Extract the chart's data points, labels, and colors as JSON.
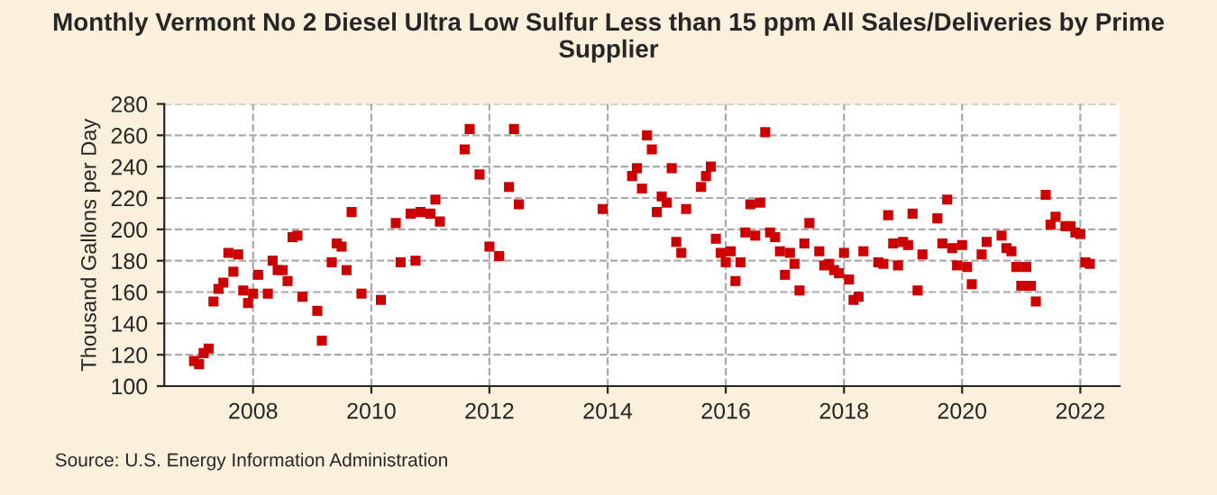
{
  "chart_data": {
    "type": "scatter",
    "title": "Monthly Vermont No 2 Diesel Ultra Low Sulfur Less than 15 ppm All Sales/Deliveries by Prime Supplier",
    "ylabel": "Thousand Gallons per Day",
    "annotations": [
      "Source: U.S. Energy Information Administration"
    ],
    "x": [
      "2007-01",
      "2007-02",
      "2007-03",
      "2007-04",
      "2007-05",
      "2007-06",
      "2007-07",
      "2007-08",
      "2007-09",
      "2007-10",
      "2007-11",
      "2007-12",
      "2008-01",
      "2008-02",
      "2008-04",
      "2008-05",
      "2008-06",
      "2008-07",
      "2008-08",
      "2008-09",
      "2008-10",
      "2008-11",
      "2009-02",
      "2009-03",
      "2009-05",
      "2009-06",
      "2009-07",
      "2009-08",
      "2009-09",
      "2009-11",
      "2010-03",
      "2010-06",
      "2010-07",
      "2010-09",
      "2010-10",
      "2010-11",
      "2011-01",
      "2011-02",
      "2011-03",
      "2011-08",
      "2011-09",
      "2011-11",
      "2012-01",
      "2012-03",
      "2012-05",
      "2012-06",
      "2012-07",
      "2013-12",
      "2014-06",
      "2014-07",
      "2014-08",
      "2014-09",
      "2014-10",
      "2014-11",
      "2014-12",
      "2015-01",
      "2015-02",
      "2015-03",
      "2015-04",
      "2015-05",
      "2015-08",
      "2015-09",
      "2015-10",
      "2015-11",
      "2015-12",
      "2016-01",
      "2016-02",
      "2016-03",
      "2016-04",
      "2016-05",
      "2016-06",
      "2016-07",
      "2016-08",
      "2016-09",
      "2016-10",
      "2016-11",
      "2016-12",
      "2017-01",
      "2017-02",
      "2017-03",
      "2017-04",
      "2017-05",
      "2017-06",
      "2017-08",
      "2017-09",
      "2017-10",
      "2017-11",
      "2017-12",
      "2018-01",
      "2018-02",
      "2018-03",
      "2018-04",
      "2018-05",
      "2018-08",
      "2018-09",
      "2018-10",
      "2018-11",
      "2018-12",
      "2019-01",
      "2019-02",
      "2019-03",
      "2019-04",
      "2019-05",
      "2019-08",
      "2019-09",
      "2019-10",
      "2019-11",
      "2019-12",
      "2020-01",
      "2020-02",
      "2020-03",
      "2020-05",
      "2020-06",
      "2020-09",
      "2020-10",
      "2020-11",
      "2020-12",
      "2021-01",
      "2021-02",
      "2021-03",
      "2021-04",
      "2021-06",
      "2021-07",
      "2021-08",
      "2021-10",
      "2021-11",
      "2021-12",
      "2022-01",
      "2022-02",
      "2022-03"
    ],
    "series": [
      {
        "color": "#cc0000",
        "values": [
          116,
          114,
          121,
          124,
          154,
          162,
          166,
          185,
          173,
          184,
          161,
          153,
          159,
          171,
          159,
          180,
          174,
          174,
          167,
          195,
          196,
          157,
          148,
          129,
          179,
          191,
          189,
          174,
          211,
          159,
          155,
          204,
          179,
          210,
          180,
          211,
          210,
          219,
          205,
          251,
          264,
          235,
          189,
          183,
          227,
          264,
          216,
          213,
          234,
          239,
          226,
          260,
          251,
          211,
          221,
          217,
          239,
          192,
          185,
          213,
          227,
          234,
          240,
          194,
          185,
          179,
          186,
          167,
          179,
          198,
          216,
          196,
          217,
          262,
          198,
          195,
          186,
          171,
          185,
          178,
          161,
          191,
          204,
          186,
          177,
          178,
          174,
          172,
          185,
          168,
          155,
          157,
          186,
          179,
          178,
          209,
          191,
          177,
          192,
          190,
          210,
          161,
          184,
          207,
          191,
          219,
          188,
          177,
          190,
          176,
          165,
          184,
          192,
          196,
          188,
          186,
          176,
          164,
          176,
          164,
          154,
          222,
          203,
          208,
          202,
          202,
          198,
          197,
          179,
          178
        ]
      }
    ],
    "xlim": [
      "2006-07",
      "2022-09"
    ],
    "xticks": [
      "2008",
      "2010",
      "2012",
      "2014",
      "2016",
      "2018",
      "2020",
      "2022"
    ],
    "ylim": [
      100,
      280
    ],
    "yticks": [
      100,
      120,
      140,
      160,
      180,
      200,
      220,
      240,
      260,
      280
    ],
    "grid": true,
    "marker": "square",
    "legend": false
  }
}
